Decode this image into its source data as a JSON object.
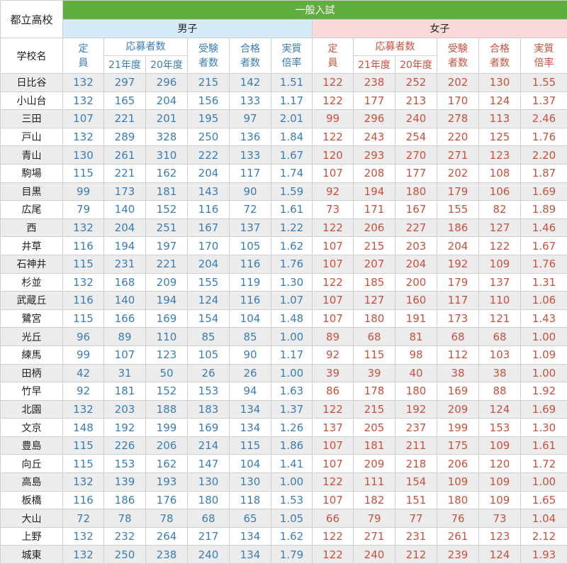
{
  "header": {
    "corner": "都立高校",
    "general": "一般入試",
    "boys": "男子",
    "girls": "女子",
    "school": "学校名",
    "cols": {
      "capacity": "定員",
      "applicants": "応募者数",
      "y21": "21年度",
      "y20": "20年度",
      "examinees": "受験者数",
      "passed": "合格者数",
      "ratio": "実質倍率"
    }
  },
  "rows": [
    {
      "name": "日比谷",
      "b": [
        "132",
        "297",
        "296",
        "215",
        "142",
        "1.51"
      ],
      "g": [
        "122",
        "238",
        "252",
        "202",
        "130",
        "1.55"
      ]
    },
    {
      "name": "小山台",
      "b": [
        "132",
        "165",
        "204",
        "156",
        "133",
        "1.17"
      ],
      "g": [
        "122",
        "177",
        "213",
        "170",
        "124",
        "1.37"
      ]
    },
    {
      "name": "三田",
      "b": [
        "107",
        "221",
        "201",
        "195",
        "97",
        "2.01"
      ],
      "g": [
        "99",
        "296",
        "240",
        "278",
        "113",
        "2.46"
      ]
    },
    {
      "name": "戸山",
      "b": [
        "132",
        "289",
        "328",
        "250",
        "136",
        "1.84"
      ],
      "g": [
        "122",
        "243",
        "254",
        "220",
        "125",
        "1.76"
      ]
    },
    {
      "name": "青山",
      "b": [
        "130",
        "261",
        "310",
        "222",
        "133",
        "1.67"
      ],
      "g": [
        "120",
        "293",
        "270",
        "271",
        "123",
        "2.20"
      ]
    },
    {
      "name": "駒場",
      "b": [
        "115",
        "221",
        "162",
        "204",
        "117",
        "1.74"
      ],
      "g": [
        "107",
        "208",
        "177",
        "202",
        "108",
        "1.87"
      ]
    },
    {
      "name": "目黒",
      "b": [
        "99",
        "173",
        "181",
        "143",
        "90",
        "1.59"
      ],
      "g": [
        "92",
        "194",
        "180",
        "179",
        "106",
        "1.69"
      ]
    },
    {
      "name": "広尾",
      "b": [
        "79",
        "140",
        "152",
        "116",
        "72",
        "1.61"
      ],
      "g": [
        "73",
        "171",
        "167",
        "155",
        "82",
        "1.89"
      ]
    },
    {
      "name": "西",
      "b": [
        "132",
        "204",
        "251",
        "167",
        "137",
        "1.22"
      ],
      "g": [
        "122",
        "206",
        "227",
        "186",
        "127",
        "1.46"
      ]
    },
    {
      "name": "井草",
      "b": [
        "116",
        "194",
        "197",
        "170",
        "105",
        "1.62"
      ],
      "g": [
        "107",
        "215",
        "203",
        "204",
        "122",
        "1.67"
      ]
    },
    {
      "name": "石神井",
      "b": [
        "115",
        "231",
        "221",
        "204",
        "116",
        "1.76"
      ],
      "g": [
        "107",
        "207",
        "204",
        "192",
        "109",
        "1.76"
      ]
    },
    {
      "name": "杉並",
      "b": [
        "132",
        "168",
        "209",
        "155",
        "119",
        "1.30"
      ],
      "g": [
        "122",
        "185",
        "200",
        "179",
        "137",
        "1.31"
      ]
    },
    {
      "name": "武蔵丘",
      "b": [
        "116",
        "140",
        "194",
        "124",
        "116",
        "1.07"
      ],
      "g": [
        "107",
        "127",
        "160",
        "117",
        "110",
        "1.06"
      ]
    },
    {
      "name": "鷺宮",
      "b": [
        "115",
        "166",
        "169",
        "154",
        "104",
        "1.48"
      ],
      "g": [
        "107",
        "180",
        "191",
        "173",
        "121",
        "1.43"
      ]
    },
    {
      "name": "光丘",
      "b": [
        "96",
        "89",
        "110",
        "85",
        "85",
        "1.00"
      ],
      "g": [
        "89",
        "68",
        "81",
        "68",
        "68",
        "1.00"
      ]
    },
    {
      "name": "練馬",
      "b": [
        "99",
        "107",
        "123",
        "105",
        "90",
        "1.17"
      ],
      "g": [
        "92",
        "115",
        "98",
        "112",
        "103",
        "1.09"
      ]
    },
    {
      "name": "田柄",
      "b": [
        "42",
        "31",
        "50",
        "26",
        "26",
        "1.00"
      ],
      "g": [
        "39",
        "39",
        "40",
        "38",
        "38",
        "1.00"
      ]
    },
    {
      "name": "竹早",
      "b": [
        "92",
        "181",
        "152",
        "153",
        "94",
        "1.63"
      ],
      "g": [
        "86",
        "178",
        "180",
        "169",
        "88",
        "1.92"
      ]
    },
    {
      "name": "北園",
      "b": [
        "132",
        "203",
        "188",
        "183",
        "134",
        "1.37"
      ],
      "g": [
        "122",
        "215",
        "192",
        "209",
        "124",
        "1.69"
      ]
    },
    {
      "name": "文京",
      "b": [
        "148",
        "192",
        "199",
        "169",
        "134",
        "1.26"
      ],
      "g": [
        "137",
        "205",
        "237",
        "199",
        "153",
        "1.30"
      ]
    },
    {
      "name": "豊島",
      "b": [
        "115",
        "226",
        "206",
        "214",
        "115",
        "1.86"
      ],
      "g": [
        "107",
        "181",
        "211",
        "175",
        "109",
        "1.61"
      ]
    },
    {
      "name": "向丘",
      "b": [
        "115",
        "153",
        "162",
        "147",
        "104",
        "1.41"
      ],
      "g": [
        "107",
        "209",
        "218",
        "206",
        "120",
        "1.72"
      ]
    },
    {
      "name": "高島",
      "b": [
        "132",
        "139",
        "193",
        "130",
        "130",
        "1.00"
      ],
      "g": [
        "122",
        "111",
        "154",
        "109",
        "109",
        "1.00"
      ]
    },
    {
      "name": "板橋",
      "b": [
        "116",
        "186",
        "176",
        "180",
        "118",
        "1.53"
      ],
      "g": [
        "107",
        "182",
        "151",
        "180",
        "109",
        "1.65"
      ]
    },
    {
      "name": "大山",
      "b": [
        "72",
        "78",
        "78",
        "68",
        "65",
        "1.05"
      ],
      "g": [
        "66",
        "79",
        "77",
        "76",
        "73",
        "1.04"
      ]
    },
    {
      "name": "上野",
      "b": [
        "132",
        "232",
        "264",
        "217",
        "134",
        "1.62"
      ],
      "g": [
        "122",
        "271",
        "231",
        "261",
        "123",
        "2.12"
      ]
    },
    {
      "name": "城東",
      "b": [
        "132",
        "250",
        "238",
        "240",
        "134",
        "1.79"
      ],
      "g": [
        "122",
        "240",
        "212",
        "239",
        "124",
        "1.93"
      ]
    }
  ]
}
